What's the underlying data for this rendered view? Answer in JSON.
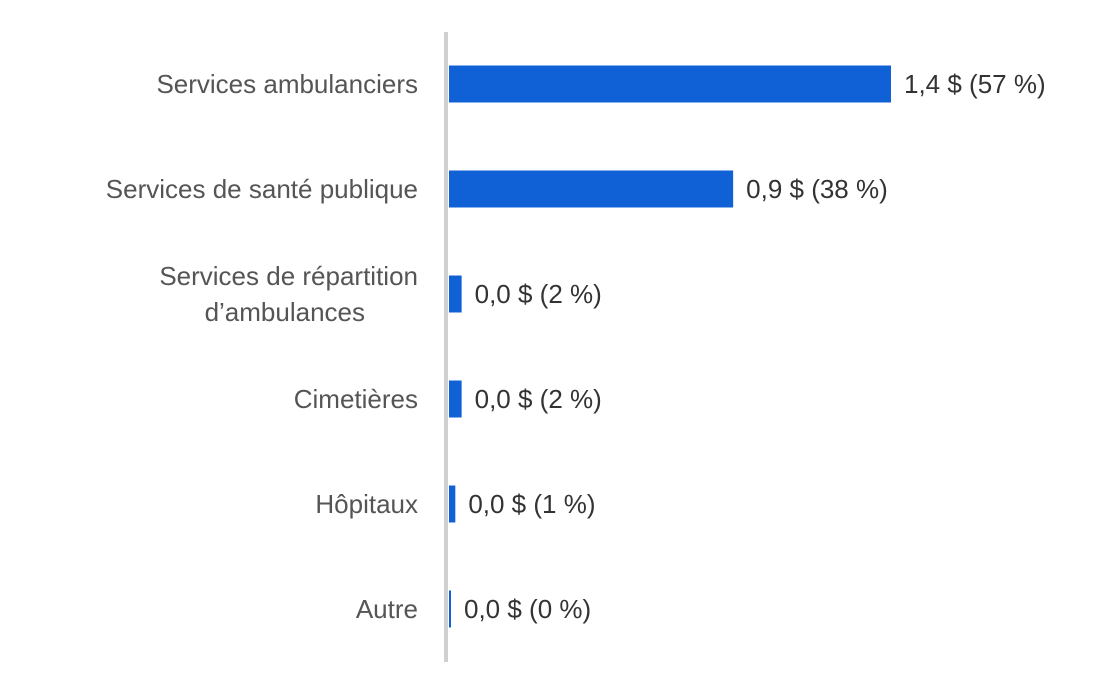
{
  "chart_data": {
    "type": "bar",
    "orientation": "horizontal",
    "categories": [
      [
        "Services ambulanciers"
      ],
      [
        "Services de santé publique"
      ],
      [
        "Services de répartition",
        "d’ambulances"
      ],
      [
        "Cimetières"
      ],
      [
        "Hôpitaux"
      ],
      [
        "Autre"
      ]
    ],
    "values": [
      1.4,
      0.9,
      0.04,
      0.04,
      0.02,
      0.002
    ],
    "value_labels": [
      "1,4 $ (57 %)",
      "0,9 $ (38 %)",
      "0,0 $ (2 %)",
      "0,0 $ (2 %)",
      "0,0 $ (1 %)",
      "0,0 $ (0 %)"
    ],
    "title": "",
    "xlabel": "",
    "ylabel": "",
    "grid": false,
    "legend": "none",
    "bar_color": "#1060d6",
    "axis_color": "#d0d0d0"
  }
}
